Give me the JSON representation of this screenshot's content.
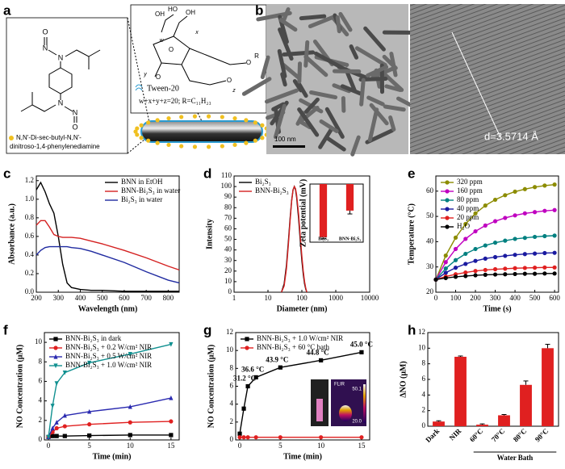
{
  "panel_labels": [
    "a",
    "b",
    "c",
    "d",
    "e",
    "f",
    "g",
    "h"
  ],
  "panel_a": {
    "molecule_name": [
      "N,N'-Di-sec-butyl-N,N'-",
      "dinitroso-1,4-phenylenediamine"
    ],
    "atoms": [
      "O",
      "N",
      "N",
      "N",
      "N",
      "O"
    ],
    "tween_atoms": [
      "OH",
      "HO",
      "OH",
      "O",
      "O",
      "O",
      "O",
      "R",
      "w",
      "x",
      "y",
      "z"
    ],
    "tween_name": "Tween-20",
    "tween_formula": "w+x+y+z=20; R=C₁₁H₂₃"
  },
  "panel_b": {
    "scale_bar": "100 nm",
    "d_spacing": "d=3.5714 Å"
  },
  "panel_g_inset": {
    "brand": "FLIR",
    "max": "50.1",
    "min": "20.0"
  },
  "chart_data": [
    {
      "type": "line",
      "xlabel": "Wavelength (nm)",
      "ylabel": "Absorbance (a.u.)",
      "legend": "upper right",
      "x": [
        200,
        220,
        240,
        260,
        280,
        300,
        320,
        340,
        360,
        400,
        450,
        500,
        600,
        700,
        800,
        850
      ],
      "xlim": [
        200,
        850
      ],
      "xticks": [
        200,
        300,
        400,
        500,
        600,
        700,
        800
      ],
      "ylim": [
        0,
        1.25
      ],
      "yticks": [
        {
          "value": 0,
          "label": "0.0"
        },
        0.2,
        0.4,
        0.6,
        0.8,
        {
          "value": 1,
          "label": "1.0"
        },
        1.2
      ],
      "series": [
        {
          "name": "BNN in EtOH",
          "color": "#000000",
          "marker": "none",
          "values": [
            1.1,
            1.18,
            1.08,
            0.95,
            0.85,
            0.6,
            0.3,
            0.1,
            0.05,
            0.03,
            0.02,
            0.02,
            0.01,
            0.01,
            0.01,
            0.01
          ]
        },
        {
          "name": "BNN-Bi₂S₃ in water",
          "color": "#d42020",
          "marker": "none",
          "values": [
            0.72,
            0.77,
            0.77,
            0.7,
            0.62,
            0.6,
            0.59,
            0.59,
            0.59,
            0.58,
            0.55,
            0.52,
            0.45,
            0.37,
            0.28,
            0.24
          ]
        },
        {
          "name": "Bi₂S₃ in water",
          "color": "#1f2aa0",
          "marker": "none",
          "values": [
            0.4,
            0.45,
            0.48,
            0.49,
            0.49,
            0.49,
            0.49,
            0.49,
            0.48,
            0.47,
            0.44,
            0.4,
            0.32,
            0.22,
            0.13,
            0.1
          ]
        }
      ]
    },
    {
      "type": "line",
      "xlabel": "Diameter (nm)",
      "ylabel": "Intensity",
      "legend": "upper left",
      "xscale": "log",
      "x": [
        25,
        30,
        35,
        40,
        45,
        50,
        55,
        60,
        65,
        70,
        80,
        90,
        100,
        110,
        120,
        130,
        140
      ],
      "xlim": [
        1,
        10000
      ],
      "xticks": [
        1,
        10,
        100,
        1000,
        10000
      ],
      "ylim": [
        0,
        110
      ],
      "yticks": [
        0,
        10,
        20,
        30,
        40,
        50,
        60,
        70,
        80,
        90,
        100,
        110
      ],
      "series": [
        {
          "name": "Bi₂S₃",
          "color": "#000000",
          "marker": "none",
          "values": [
            0,
            8,
            25,
            48,
            70,
            87,
            97,
            100,
            97,
            90,
            70,
            48,
            30,
            17,
            8,
            3,
            0
          ]
        },
        {
          "name": "BNN-Bi₂S₃",
          "color": "#d42020",
          "marker": "none",
          "values": [
            0,
            6,
            22,
            45,
            68,
            86,
            97,
            100,
            98,
            92,
            74,
            52,
            34,
            20,
            10,
            4,
            0
          ]
        }
      ]
    },
    {
      "type": "bar",
      "ylabel": "Zeta potential (mV)",
      "categories": [
        "Bi₂S₃",
        "BNN-Bi₂S₃"
      ],
      "values": [
        -32,
        -16
      ],
      "errors": [
        1,
        2
      ],
      "color": "#e02020",
      "ylim": [
        -35,
        0
      ]
    },
    {
      "type": "line",
      "xlabel": "Time (s)",
      "ylabel": "Temperature (°C)",
      "legend": "upper left",
      "x": [
        0,
        50,
        100,
        150,
        200,
        250,
        300,
        350,
        400,
        450,
        500,
        550,
        600
      ],
      "xlim": [
        0,
        620
      ],
      "xticks": [
        0,
        100,
        200,
        300,
        400,
        500,
        600
      ],
      "ylim": [
        20,
        66
      ],
      "yticks": [
        20,
        30,
        40,
        50,
        60
      ],
      "series": [
        {
          "name": "320 ppm",
          "color": "#8c8c00",
          "marker": "circle",
          "values": [
            25,
            34.5,
            41.6,
            47.0,
            51.2,
            54.3,
            56.6,
            58.4,
            59.8,
            60.8,
            61.6,
            62.2,
            62.6
          ]
        },
        {
          "name": "160 ppm",
          "color": "#c000c0",
          "marker": "circle",
          "values": [
            25,
            31.9,
            37.1,
            41.1,
            44.1,
            46.4,
            48.1,
            49.4,
            50.4,
            51.2,
            51.7,
            52.2,
            52.5
          ]
        },
        {
          "name": "80 ppm",
          "color": "#008080",
          "marker": "circle",
          "values": [
            25,
            29.4,
            32.7,
            35.2,
            37.1,
            38.5,
            39.6,
            40.4,
            41.1,
            41.5,
            41.9,
            42.2,
            42.4
          ]
        },
        {
          "name": "40 ppm",
          "color": "#1a1aa0",
          "marker": "circle",
          "values": [
            25,
            27.7,
            29.7,
            31.2,
            32.4,
            33.3,
            33.9,
            34.4,
            34.8,
            35.1,
            35.3,
            35.5,
            35.6
          ]
        },
        {
          "name": "20 ppm",
          "color": "#e02020",
          "marker": "circle",
          "values": [
            25,
            26.2,
            27.1,
            27.8,
            28.4,
            28.8,
            29.1,
            29.3,
            29.5,
            29.6,
            29.7,
            29.8,
            29.8
          ]
        },
        {
          "name": "H₂O",
          "color": "#000000",
          "marker": "circle",
          "values": [
            25,
            25.6,
            26.1,
            26.4,
            26.7,
            26.9,
            27.0,
            27.1,
            27.2,
            27.3,
            27.3,
            27.4,
            27.4
          ]
        }
      ]
    },
    {
      "type": "line",
      "xlabel": "Time (min)",
      "ylabel": "NO Concentration (μM)",
      "legend": "upper left",
      "x": [
        0,
        0.5,
        1,
        2,
        5,
        10,
        15
      ],
      "xlim": [
        -0.5,
        16
      ],
      "xticks": [
        0,
        5,
        10,
        15
      ],
      "ylim": [
        0,
        11
      ],
      "yticks": [
        0,
        2,
        4,
        6,
        8,
        10
      ],
      "series": [
        {
          "name": "BNN-Bi₂S₃ in dark",
          "color": "#000000",
          "marker": "square",
          "values": [
            0.3,
            0.4,
            0.4,
            0.4,
            0.45,
            0.5,
            0.5
          ]
        },
        {
          "name": "BNN-Bi₂S₃ + 0.2 W/cm² NIR",
          "color": "#e02020",
          "marker": "circle",
          "values": [
            0.3,
            0.8,
            1.2,
            1.4,
            1.6,
            1.8,
            1.9
          ]
        },
        {
          "name": "BNN-Bi₂S₃ + 0.5 W/cm² NIR",
          "color": "#2a2ab0",
          "marker": "triangle",
          "values": [
            0.3,
            1.2,
            1.8,
            2.5,
            2.9,
            3.4,
            4.3
          ]
        },
        {
          "name": "BNN-Bi₂S₃ + 1.0 W/cm² NIR",
          "color": "#109090",
          "marker": "down-triangle",
          "values": [
            0.3,
            3.5,
            5.8,
            6.9,
            7.9,
            8.8,
            9.8
          ]
        }
      ]
    },
    {
      "type": "line",
      "xlabel": "Time (min)",
      "ylabel": "NO Concentration (μM)",
      "legend": "upper left",
      "x": [
        0,
        0.5,
        1,
        2,
        5,
        10,
        15
      ],
      "xlim": [
        -0.5,
        16
      ],
      "xticks": [
        0,
        5,
        10,
        15
      ],
      "ylim": [
        0,
        12
      ],
      "yticks": [
        0,
        2,
        4,
        6,
        8,
        10,
        12
      ],
      "annotations": [
        "31.2 °C",
        "36.6 °C",
        "43.9 °C",
        "44.8 °C",
        "45.0 °C"
      ],
      "series": [
        {
          "name": "BNN-Bi₂S₃ + 1.0 W/cm² NIR",
          "color": "#000000",
          "marker": "square",
          "values": [
            0.7,
            3.5,
            6.0,
            7.0,
            8.1,
            8.9,
            9.8
          ]
        },
        {
          "name": "BNN-Bi₂S₃ + 60 °C bath",
          "color": "#e02020",
          "marker": "circle",
          "values": [
            0.3,
            0.3,
            0.3,
            0.3,
            0.3,
            0.3,
            0.3
          ]
        }
      ]
    },
    {
      "type": "bar",
      "ylabel": "ΔNO (μM)",
      "categories": [
        "Dark",
        "NIR",
        "60°C",
        "70°C",
        "80°C",
        "90°C"
      ],
      "values": [
        0.6,
        8.9,
        0.2,
        1.4,
        5.3,
        10.0
      ],
      "errors": [
        0.1,
        0.1,
        0.1,
        0.1,
        0.5,
        0.5
      ],
      "color": "#e02020",
      "ylim": [
        0,
        12
      ],
      "yticks": [
        0,
        2,
        4,
        6,
        8,
        10,
        12
      ],
      "group_label": "Water Bath"
    }
  ]
}
